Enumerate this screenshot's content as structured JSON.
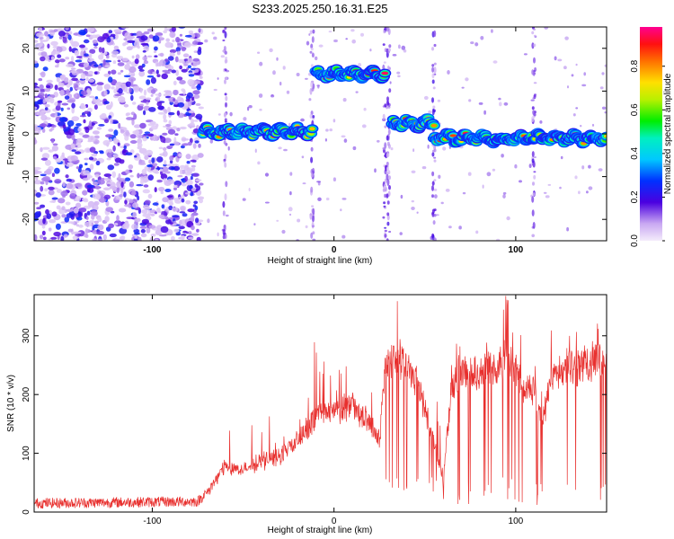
{
  "title": "S233.2025.250.16.31.E25",
  "chart_data": [
    {
      "type": "heatmap",
      "xlabel": "Height of straight line (km)",
      "ylabel": "Frequency (Hz)",
      "xlim": [
        -165,
        150
      ],
      "ylim": [
        -25,
        25
      ],
      "xticks": [
        -100,
        0,
        100
      ],
      "yticks": [
        -20,
        -10,
        0,
        10,
        20
      ],
      "noise_region_x": [
        -165,
        -73
      ],
      "ridge_segments": [
        {
          "x": [
            -72,
            -12
          ],
          "freq": 0.5,
          "peak_amp": 0.9
        },
        {
          "x": [
            -10,
            28
          ],
          "freq": 14.0,
          "peak_amp": 1.0
        },
        {
          "x": [
            32,
            55
          ],
          "freq": 2.5,
          "peak_amp": 0.95
        },
        {
          "x": [
            55,
            150
          ],
          "freq": -1.0,
          "peak_amp": 1.0
        }
      ],
      "colorbar": {
        "label": "Normalized spectral amplitude",
        "range": [
          0,
          0.98
        ],
        "ticks": [
          "0.0",
          "0.2",
          "0.4",
          "0.6",
          "0.8"
        ],
        "tick_values": [
          0,
          0.2,
          0.4,
          0.6,
          0.8
        ]
      }
    },
    {
      "type": "line",
      "xlabel": "Height of straight line (km)",
      "ylabel": "SNR (10 * v/v)",
      "xlim": [
        -165,
        150
      ],
      "ylim": [
        0,
        370
      ],
      "xticks": [
        -100,
        0,
        100
      ],
      "yticks": [
        0,
        100,
        200,
        300
      ],
      "color": "#e8302e",
      "profile_x": [
        -165,
        -75,
        -68,
        -60,
        -50,
        -40,
        -30,
        -20,
        -10,
        -5,
        0,
        10,
        20,
        25,
        28,
        35,
        45,
        55,
        60,
        65,
        70,
        80,
        90,
        95,
        100,
        105,
        110,
        115,
        120,
        130,
        140,
        150
      ],
      "profile_snr": [
        15,
        18,
        40,
        80,
        70,
        85,
        95,
        120,
        160,
        170,
        170,
        180,
        150,
        120,
        250,
        265,
        230,
        120,
        60,
        220,
        240,
        240,
        250,
        270,
        240,
        200,
        210,
        150,
        240,
        245,
        255,
        260
      ]
    }
  ]
}
